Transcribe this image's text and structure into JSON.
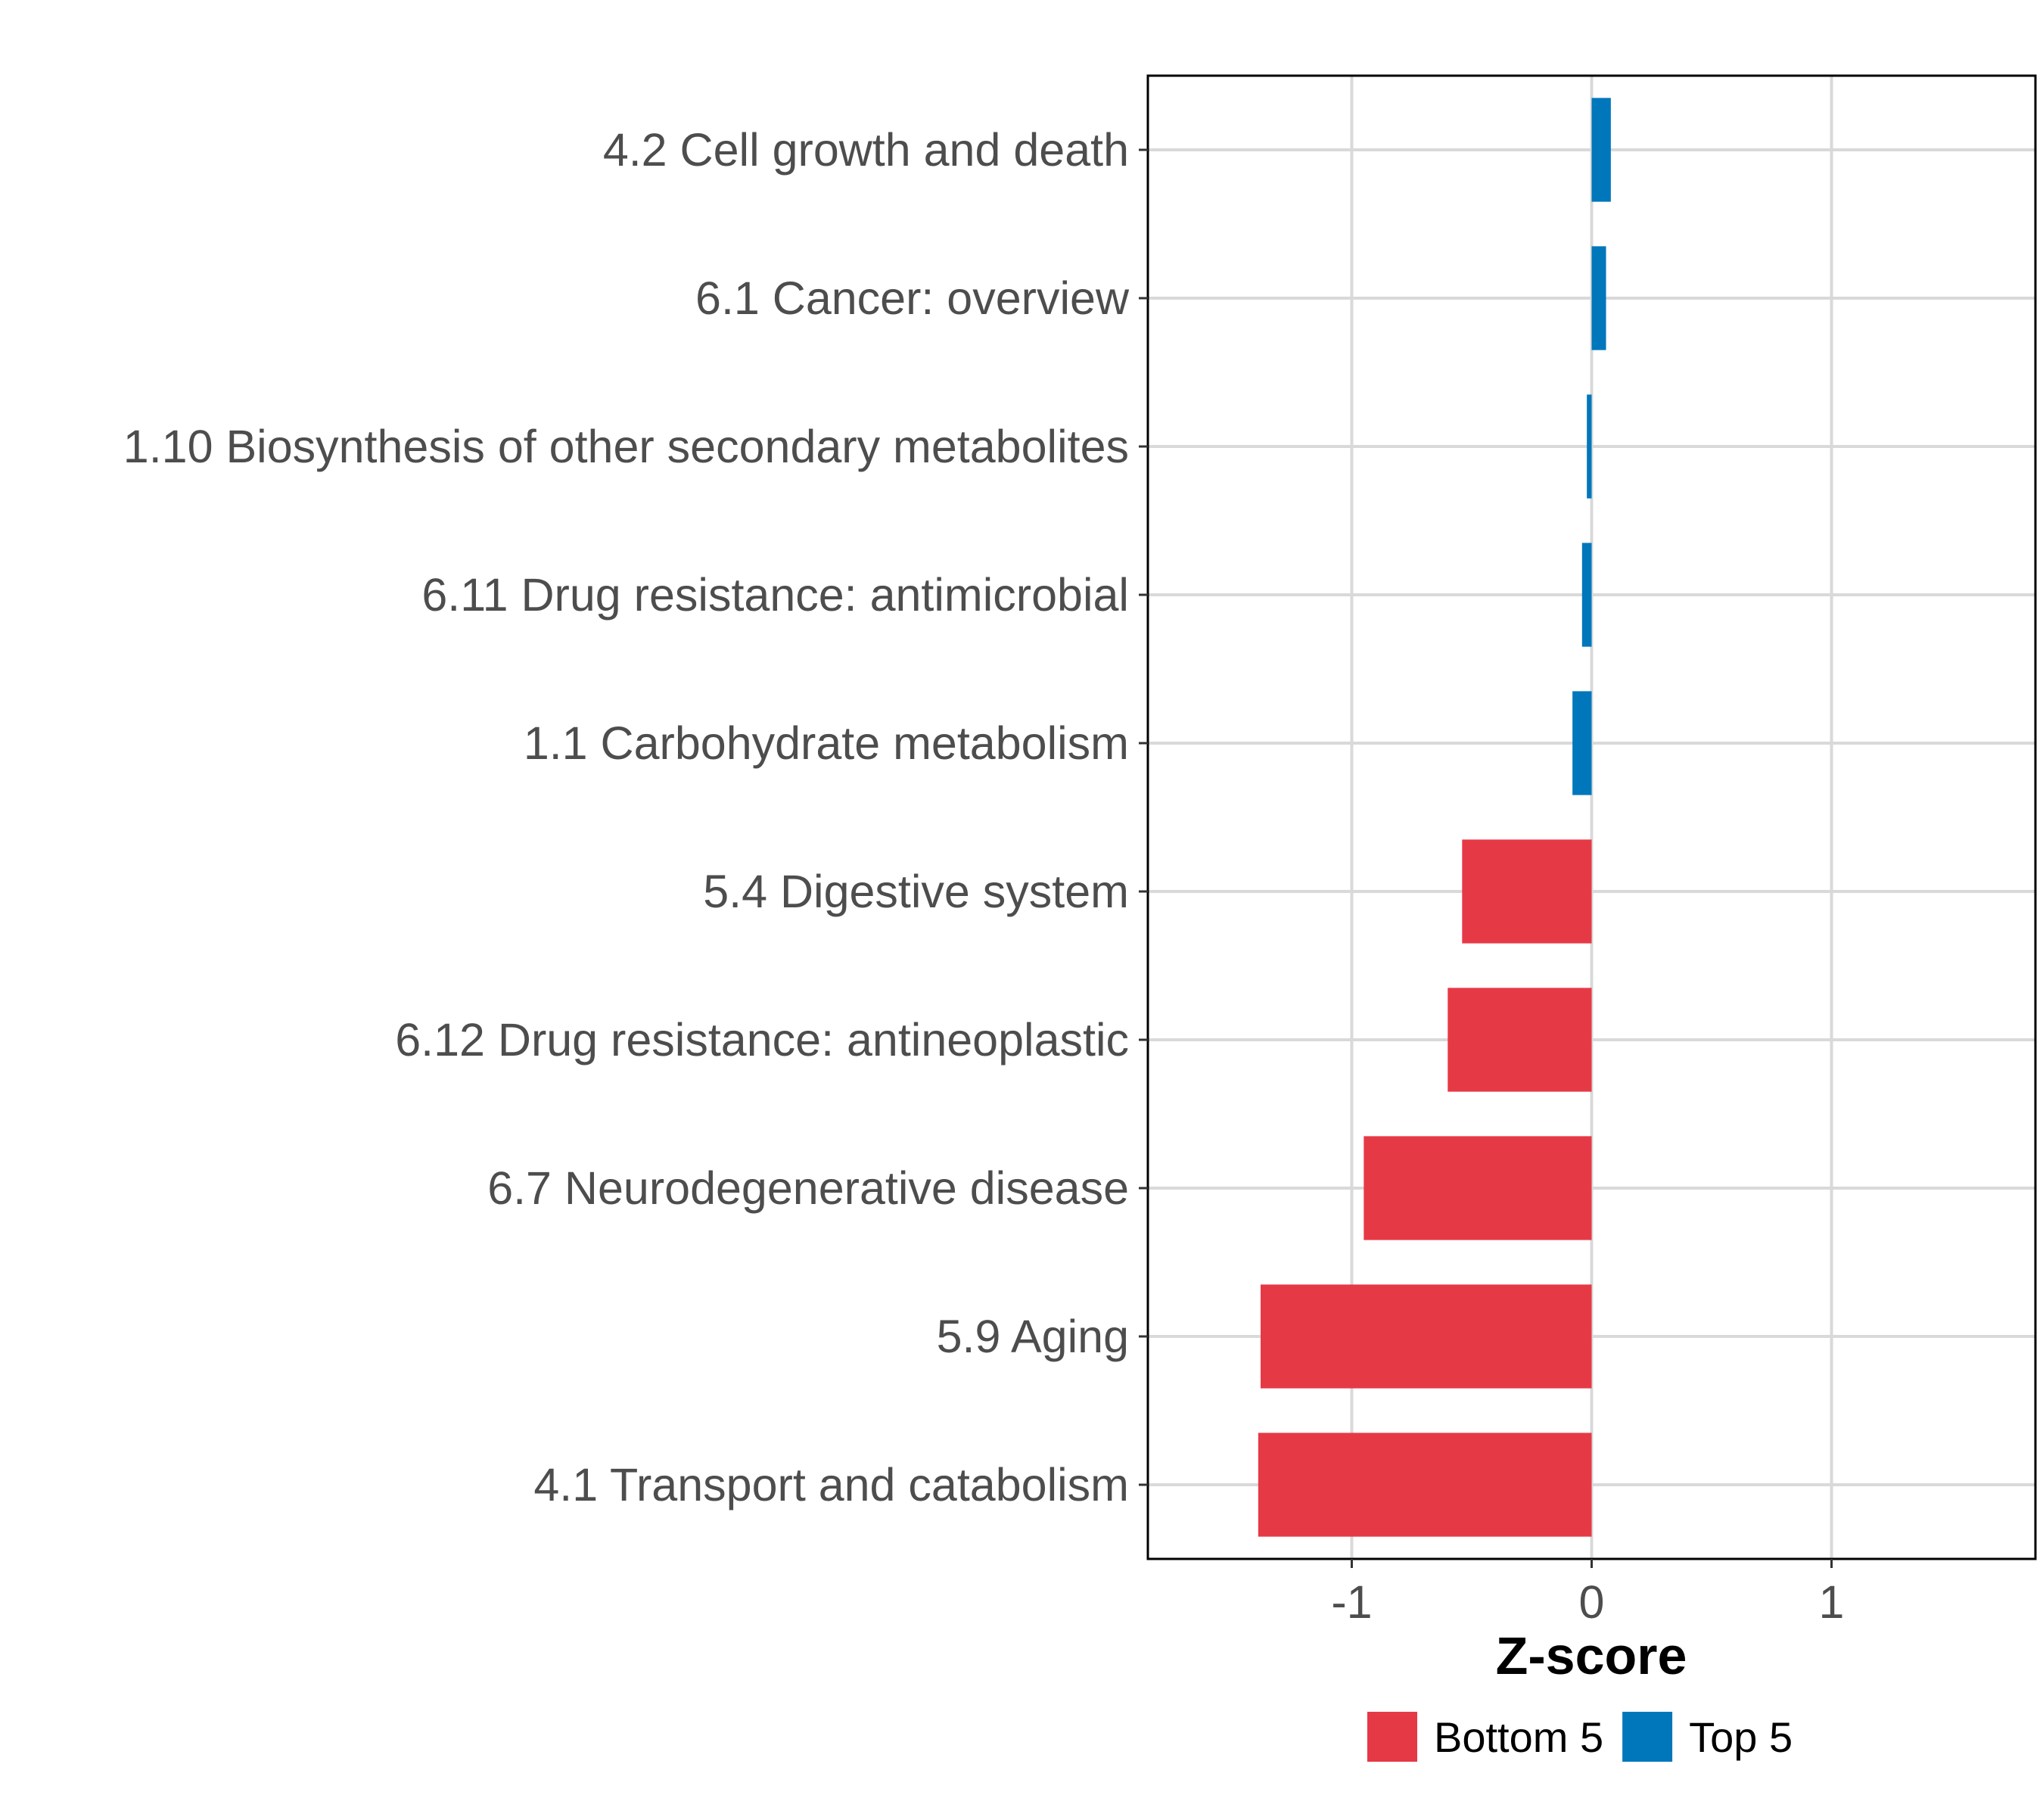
{
  "chart_data": {
    "type": "bar",
    "orientation": "horizontal",
    "title": "",
    "xlabel": "Z-score",
    "ylabel": "",
    "xlim": [
      -1.85,
      1.85
    ],
    "xticks": [
      -1,
      0,
      1
    ],
    "xtick_labels": [
      "-1",
      "0",
      "1"
    ],
    "grid": true,
    "legend_position": "bottom",
    "categories": [
      "4.2 Cell growth and death",
      "6.1 Cancer: overview",
      "1.10 Biosynthesis of other secondary metabolites",
      "6.11 Drug resistance: antimicrobial",
      "1.1 Carbohydrate metabolism",
      "5.4 Digestive system",
      "6.12 Drug resistance: antineoplastic",
      "6.7 Neurodegenerative disease",
      "5.9 Aging",
      "4.1 Transport and catabolism"
    ],
    "values": [
      0.08,
      0.06,
      -0.02,
      -0.04,
      -0.08,
      -0.54,
      -0.6,
      -0.95,
      -1.38,
      -1.39
    ],
    "groups": [
      "Top 5",
      "Top 5",
      "Top 5",
      "Top 5",
      "Top 5",
      "Bottom 5",
      "Bottom 5",
      "Bottom 5",
      "Bottom 5",
      "Bottom 5"
    ],
    "series": [
      {
        "name": "Bottom 5",
        "color": "#e63946"
      },
      {
        "name": "Top 5",
        "color": "#0077bb"
      }
    ]
  }
}
